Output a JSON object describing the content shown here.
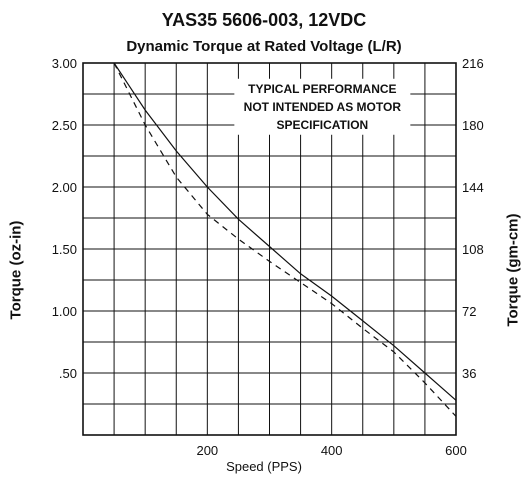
{
  "chart_data": {
    "type": "line",
    "title": "YAS35 5606-003, 12VDC",
    "subtitle": "Dynamic Torque at Rated Voltage (L/R)",
    "xlabel": "Speed (PPS)",
    "ylabel": "Torque (oz-in)",
    "ylabel_right": "Torque (gm-cm)",
    "xlim": [
      0,
      600
    ],
    "ylim": [
      0,
      3.0
    ],
    "x_ticks": [
      "200",
      "400",
      "600"
    ],
    "y_ticks": [
      "3.00",
      "2.50",
      "2.00",
      "1.50",
      "1.00",
      ".50"
    ],
    "y_ticks_right": [
      "216",
      "180",
      "144",
      "108",
      "72",
      "36"
    ],
    "grid": true,
    "annotation": [
      "TYPICAL PERFORMANCE",
      "NOT INTENDED AS MOTOR",
      "SPECIFICATION"
    ],
    "series": [
      {
        "style": "solid",
        "x": [
          50,
          100,
          150,
          200,
          250,
          300,
          350,
          400,
          450,
          500,
          550,
          600
        ],
        "y": [
          3.0,
          2.62,
          2.29,
          2.0,
          1.74,
          1.52,
          1.3,
          1.12,
          0.92,
          0.72,
          0.5,
          0.28
        ]
      },
      {
        "style": "dashed",
        "x": [
          50,
          100,
          150,
          200,
          250,
          300,
          350,
          400,
          450,
          500,
          550,
          600
        ],
        "y": [
          3.0,
          2.5,
          2.08,
          1.78,
          1.58,
          1.4,
          1.23,
          1.06,
          0.86,
          0.67,
          0.42,
          0.15
        ]
      }
    ],
    "colors": {
      "line": "#111111",
      "grid": "#111111",
      "background": "#ffffff"
    }
  }
}
